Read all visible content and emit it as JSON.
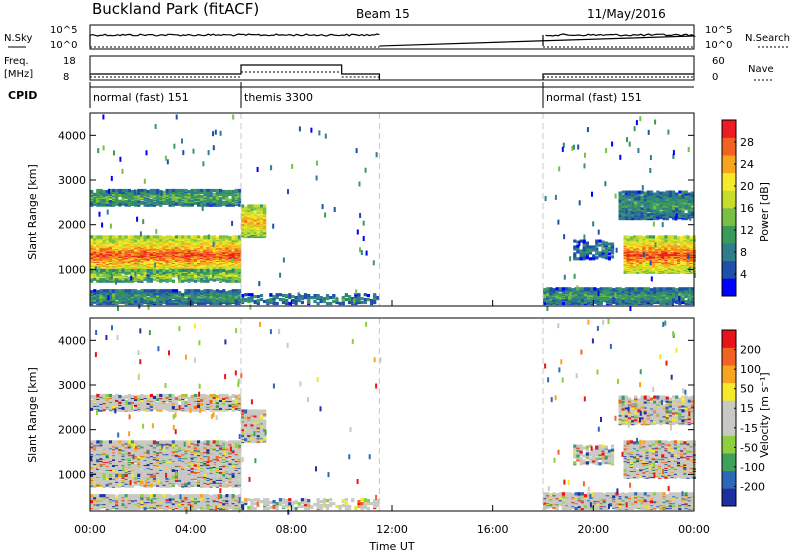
{
  "header": {
    "title": "Buckland Park (fitACF)",
    "beam": "Beam 15",
    "date": "11/May/2016"
  },
  "panels": {
    "nsky_label": "N.Sky",
    "nsearch_label": "N.Search",
    "nsky_ticks": [
      "10^5",
      "10^0"
    ],
    "freq_label_1": "Freq.",
    "freq_label_2": "[MHz]",
    "freq_ticks": [
      "18",
      "8"
    ],
    "nave_label": "Nave",
    "nave_ticks": [
      "60",
      "0"
    ],
    "cpid_label": "CPID",
    "cpid_segments": [
      {
        "start": 0,
        "end": 6,
        "label": "normal (fast) 151"
      },
      {
        "start": 6,
        "end": 11.5,
        "label": "themis 3300"
      },
      {
        "start": 18,
        "end": 24,
        "label": "normal (fast) 151"
      }
    ]
  },
  "chart_data": {
    "type": "heatmap",
    "xlabel": "Time UT",
    "x_ticks": [
      "00:00",
      "04:00",
      "08:00",
      "12:00",
      "16:00",
      "20:00",
      "00:00"
    ],
    "xlim_hours": [
      0,
      24
    ],
    "data_gap_hours": [
      11.5,
      18
    ],
    "mode_change_hours": [
      6,
      11.5,
      18
    ],
    "ylabel": "Slant Range [km]",
    "y_ticks": [
      1000,
      2000,
      3000,
      4000
    ],
    "ylim_km": [
      180,
      4500
    ],
    "power_panel": {
      "colorbar_label": "Power [dB]",
      "colorbar_ticks": [
        "28",
        "24",
        "20",
        "16",
        "12",
        "8",
        "4"
      ],
      "colors": [
        "#0000ff",
        "#1f4fa8",
        "#2e7d8c",
        "#3a9a5a",
        "#77c043",
        "#c8dd2b",
        "#f6e92a",
        "#f7a51f",
        "#f26222",
        "#ed1c24"
      ]
    },
    "velocity_panel": {
      "colorbar_label": "Velocity [m s⁻¹]",
      "colorbar_ticks": [
        "200",
        "100",
        "50",
        "15",
        "-15",
        "-50",
        "-100",
        "-200"
      ],
      "colors": [
        "#1f2fa0",
        "#2e67b8",
        "#3fa05a",
        "#8dcf3f",
        "#c8c8c4",
        "#c8c8c4",
        "#f6e92a",
        "#f7a51f",
        "#f26222",
        "#e8141c"
      ]
    },
    "echo_bands": [
      {
        "t0": 0.0,
        "t1": 6.0,
        "r0": 900,
        "r1": 1700,
        "level": 0.88,
        "density": 0.95
      },
      {
        "t0": 0.0,
        "t1": 6.0,
        "r0": 700,
        "r1": 950,
        "level": 0.55,
        "density": 0.7
      },
      {
        "t0": 0.0,
        "t1": 6.0,
        "r0": 2400,
        "r1": 2750,
        "level": 0.4,
        "density": 0.7
      },
      {
        "t0": 0.0,
        "t1": 6.0,
        "r0": 200,
        "r1": 500,
        "level": 0.35,
        "density": 0.8
      },
      {
        "t0": 6.0,
        "t1": 7.0,
        "r0": 1700,
        "r1": 2400,
        "level": 0.75,
        "density": 0.8
      },
      {
        "t0": 6.0,
        "t1": 11.5,
        "r0": 200,
        "r1": 400,
        "level": 0.3,
        "density": 0.35
      },
      {
        "t0": 18.0,
        "t1": 24.0,
        "r0": 200,
        "r1": 550,
        "level": 0.35,
        "density": 0.8
      },
      {
        "t0": 21.2,
        "t1": 24.0,
        "r0": 900,
        "r1": 1700,
        "level": 0.9,
        "density": 0.9
      },
      {
        "t0": 21.0,
        "t1": 24.0,
        "r0": 2100,
        "r1": 2700,
        "level": 0.35,
        "density": 0.7
      },
      {
        "t0": 19.2,
        "t1": 20.8,
        "r0": 1200,
        "r1": 1600,
        "level": 0.25,
        "density": 0.4
      }
    ]
  }
}
